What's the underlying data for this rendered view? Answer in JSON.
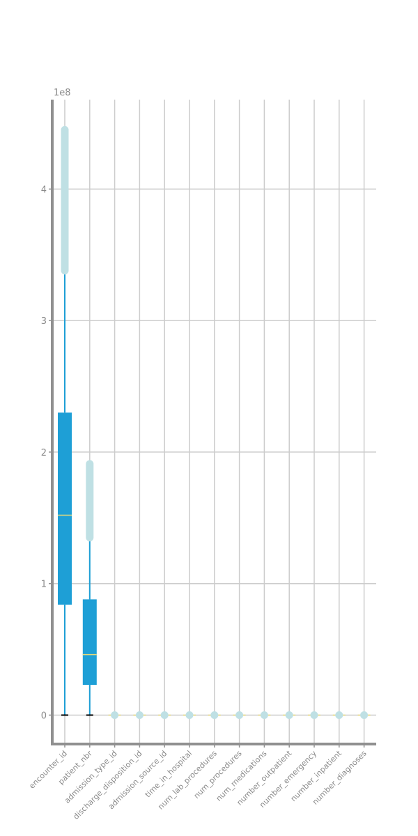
{
  "chart_data": {
    "type": "box",
    "scale_offset_text": "1e8",
    "y_ticks": [
      0,
      1,
      2,
      3,
      4
    ],
    "y_tick_labels": [
      "0",
      "1",
      "2",
      "3",
      "4"
    ],
    "ylim": [
      -0.22,
      4.68
    ],
    "grid": true,
    "colors": {
      "box": "#1e9fd6",
      "whisker": "#1e9fd6",
      "median": "#e8d97a",
      "flier": "#bfe0e4",
      "cap": "#000000",
      "grid": "#cccccc",
      "axis": "#909090"
    },
    "categories": [
      "encounter_id",
      "patient_nbr",
      "admission_type_id",
      "discharge_disposition_id",
      "admission_source_id",
      "time_in_hospital",
      "num_lab_procedures",
      "num_procedures",
      "num_medications",
      "number_outpatient",
      "number_emergency",
      "number_inpatient",
      "number_diagnoses"
    ],
    "boxes": [
      {
        "whislo": 0.0,
        "q1": 0.84,
        "med": 1.52,
        "q3": 2.3,
        "whishi": 3.4,
        "fliers_range": [
          3.38,
          4.45
        ]
      },
      {
        "whislo": 0.0,
        "q1": 0.23,
        "med": 0.46,
        "q3": 0.88,
        "whishi": 1.36,
        "fliers_range": [
          1.35,
          1.91
        ]
      },
      {
        "whislo": 0,
        "q1": 0,
        "med": 0,
        "q3": 0,
        "whishi": 0,
        "fliers_range": [
          0,
          0
        ]
      },
      {
        "whislo": 0,
        "q1": 0,
        "med": 0,
        "q3": 0,
        "whishi": 0,
        "fliers_range": [
          0,
          0
        ]
      },
      {
        "whislo": 0,
        "q1": 0,
        "med": 0,
        "q3": 0,
        "whishi": 0,
        "fliers_range": [
          0,
          0
        ]
      },
      {
        "whislo": 0,
        "q1": 0,
        "med": 0,
        "q3": 0,
        "whishi": 0,
        "fliers_range": [
          0,
          0
        ]
      },
      {
        "whislo": 0,
        "q1": 0,
        "med": 0,
        "q3": 0,
        "whishi": 0,
        "fliers_range": [
          0,
          0
        ]
      },
      {
        "whislo": 0,
        "q1": 0,
        "med": 0,
        "q3": 0,
        "whishi": 0,
        "fliers_range": [
          0,
          0
        ]
      },
      {
        "whislo": 0,
        "q1": 0,
        "med": 0,
        "q3": 0,
        "whishi": 0,
        "fliers_range": [
          0,
          0
        ]
      },
      {
        "whislo": 0,
        "q1": 0,
        "med": 0,
        "q3": 0,
        "whishi": 0,
        "fliers_range": [
          0,
          0
        ]
      },
      {
        "whislo": 0,
        "q1": 0,
        "med": 0,
        "q3": 0,
        "whishi": 0,
        "fliers_range": [
          0,
          0
        ]
      },
      {
        "whislo": 0,
        "q1": 0,
        "med": 0,
        "q3": 0,
        "whishi": 0,
        "fliers_range": [
          0,
          0
        ]
      },
      {
        "whislo": 0,
        "q1": 0,
        "med": 0,
        "q3": 0,
        "whishi": 0,
        "fliers_range": [
          0,
          0
        ]
      }
    ]
  }
}
